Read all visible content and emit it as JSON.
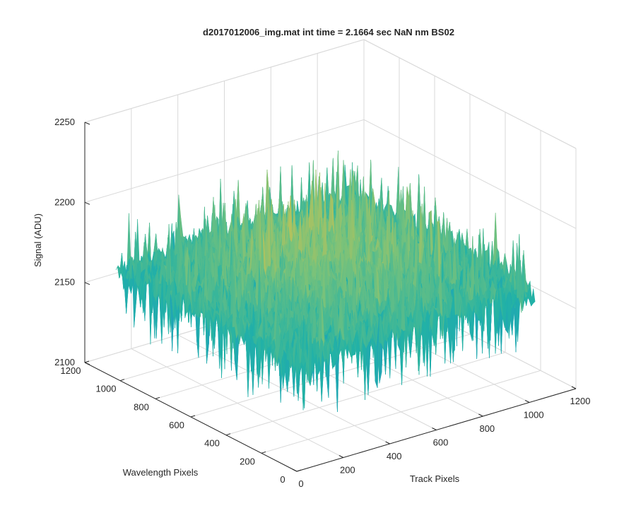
{
  "chart_data": {
    "type": "surface",
    "title": "d2017012006_img.mat int time = 2.1664 sec  NaN nm BS02",
    "xlabel": "Track Pixels",
    "ylabel": "Wavelength Pixels",
    "zlabel": "Signal (ADU)",
    "xlim": [
      0,
      1200
    ],
    "ylim": [
      0,
      1200
    ],
    "zlim": [
      2100,
      2250
    ],
    "xticks": [
      0,
      200,
      400,
      600,
      800,
      1000,
      1200
    ],
    "yticks": [
      0,
      200,
      400,
      600,
      800,
      1000,
      1200
    ],
    "zticks": [
      2100,
      2150,
      2200,
      2250
    ],
    "data_extent": {
      "x": [
        0,
        1024
      ],
      "y": [
        0,
        1024
      ]
    },
    "surface_trend": "dome-shaped: peak near 2185 ADU at the center, about 2165 ADU at the edges",
    "noise_range": [
      2120,
      2230
    ],
    "colormap": [
      "#1f6fb5",
      "#1e9bc2",
      "#22b2a6",
      "#7ac27a",
      "#d8c24a",
      "#f0c430"
    ],
    "grid": true,
    "view": "3d perspective (default azimuth/elevation)"
  },
  "colors": {
    "axis": "#262626",
    "grid": "#d9d9d9"
  }
}
